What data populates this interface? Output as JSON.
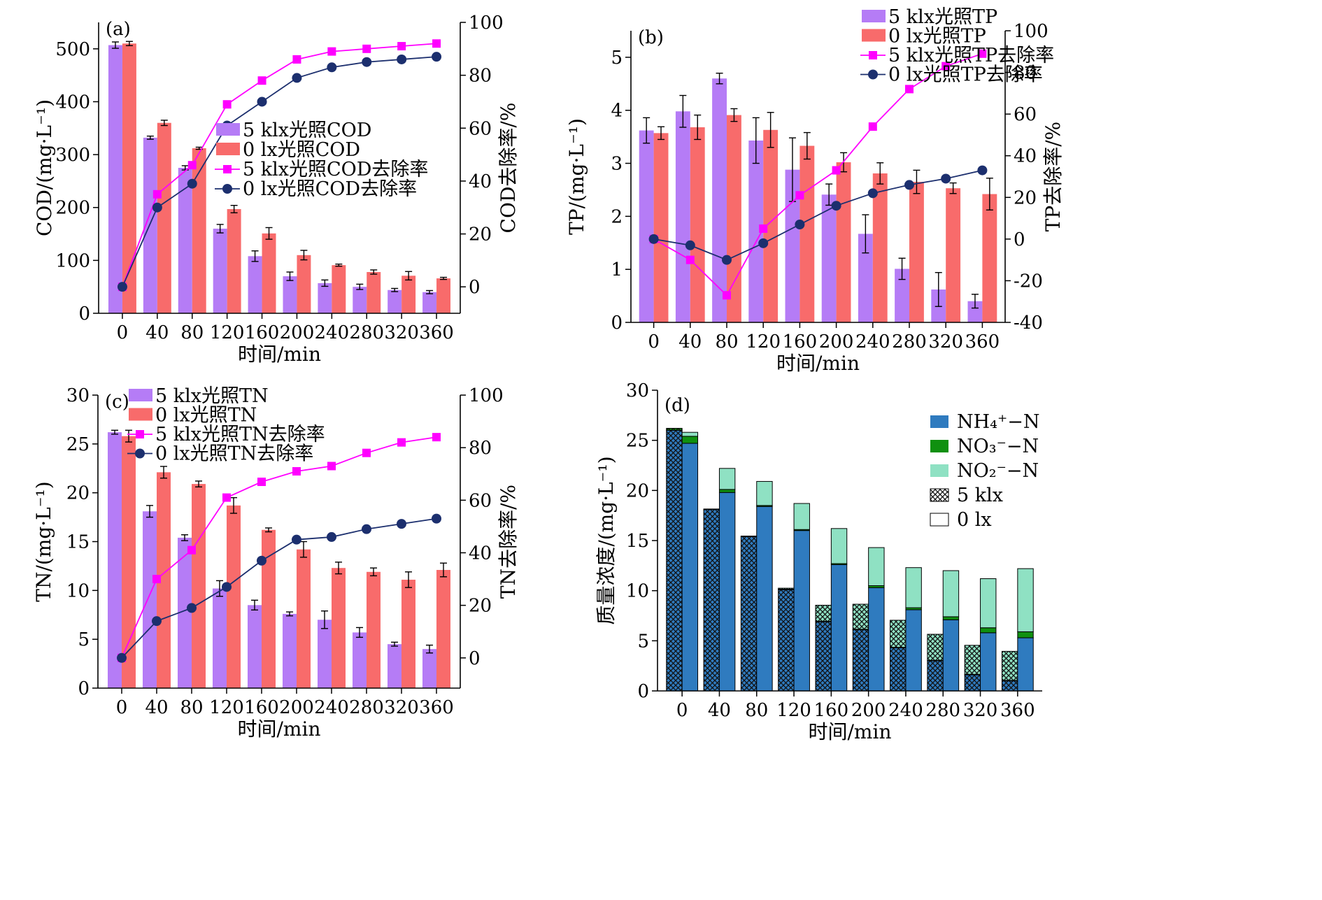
{
  "colors": {
    "purple": "#b57cf6",
    "red": "#f86b6b",
    "magenta": "#ff00ff",
    "navy": "#1c2f6e",
    "nh4": "#2f7bbf",
    "no3": "#109010",
    "no2": "#8fe1c3"
  },
  "chart_data": [
    {
      "type": "bar",
      "panel": "(a)",
      "xlabel": "时间/min",
      "ylabel": "COD/(mg·L⁻¹)",
      "y2label": "COD去除率/%",
      "x": [
        "0",
        "40",
        "80",
        "120",
        "160",
        "200",
        "240",
        "280",
        "320",
        "360"
      ],
      "ylim": [
        0,
        550
      ],
      "yticks": [
        0,
        100,
        200,
        300,
        400,
        500
      ],
      "y2lim": [
        -10,
        100
      ],
      "y2ticks": [
        0,
        20,
        40,
        60,
        80,
        100
      ],
      "series": [
        {
          "name": "5 klx光照COD",
          "kind": "bar",
          "color": "#b57cf6",
          "values": [
            507,
            332,
            275,
            160,
            108,
            70,
            57,
            50,
            44,
            40
          ],
          "errors": [
            6,
            3,
            4,
            8,
            10,
            8,
            6,
            5,
            3,
            3
          ]
        },
        {
          "name": "0 lx光照COD",
          "kind": "bar",
          "color": "#f86b6b",
          "values": [
            510,
            360,
            312,
            197,
            151,
            110,
            91,
            78,
            71,
            66
          ],
          "errors": [
            4,
            5,
            2,
            7,
            11,
            9,
            2,
            4,
            8,
            2
          ]
        },
        {
          "name": "5 klx光照COD去除率",
          "kind": "line",
          "axis": "right",
          "color": "#ff00ff",
          "marker": "square",
          "values": [
            0,
            35,
            46,
            69,
            78,
            86,
            89,
            90,
            91,
            92
          ]
        },
        {
          "name": "0 lx光照COD去除率",
          "kind": "line",
          "axis": "right",
          "color": "#1c2f6e",
          "marker": "circle",
          "values": [
            0,
            30,
            39,
            61,
            70,
            79,
            83,
            85,
            86,
            87
          ]
        }
      ]
    },
    {
      "type": "bar",
      "panel": "(b)",
      "xlabel": "时间/min",
      "ylabel": "TP/(mg·L⁻¹)",
      "y2label": "TP去除率/%",
      "x": [
        "0",
        "40",
        "80",
        "120",
        "160",
        "200",
        "240",
        "280",
        "320",
        "360"
      ],
      "ylim": [
        0,
        5.5
      ],
      "yticks": [
        0,
        1,
        2,
        3,
        4,
        5
      ],
      "y2lim": [
        -40,
        100
      ],
      "y2ticks": [
        -40,
        -20,
        0,
        20,
        40,
        60,
        80,
        100
      ],
      "series": [
        {
          "name": "5 klx光照TP",
          "kind": "bar",
          "color": "#b57cf6",
          "values": [
            3.62,
            3.98,
            4.6,
            3.43,
            2.88,
            2.41,
            1.67,
            1.01,
            0.62,
            0.4
          ],
          "errors": [
            0.24,
            0.3,
            0.1,
            0.43,
            0.6,
            0.2,
            0.36,
            0.2,
            0.32,
            0.13
          ]
        },
        {
          "name": "0 lx光照TP",
          "kind": "bar",
          "color": "#f86b6b",
          "values": [
            3.57,
            3.68,
            3.91,
            3.63,
            3.33,
            3.02,
            2.81,
            2.65,
            2.53,
            2.42
          ],
          "errors": [
            0.12,
            0.23,
            0.12,
            0.33,
            0.25,
            0.18,
            0.2,
            0.22,
            0.1,
            0.3
          ]
        },
        {
          "name": "5 klx光照TP去除率",
          "kind": "line",
          "axis": "right",
          "color": "#ff00ff",
          "marker": "square",
          "values": [
            0,
            -10,
            -27,
            5,
            21,
            33,
            54,
            72,
            83,
            89
          ]
        },
        {
          "name": "0 lx光照TP去除率",
          "kind": "line",
          "axis": "right",
          "color": "#1c2f6e",
          "marker": "circle",
          "values": [
            0,
            -3,
            -10,
            -2,
            7,
            16,
            22,
            26,
            29,
            33
          ]
        }
      ]
    },
    {
      "type": "bar",
      "panel": "(c)",
      "xlabel": "时间/min",
      "ylabel": "TN/(mg·L⁻¹)",
      "y2label": "TN去除率/%",
      "x": [
        "0",
        "40",
        "80",
        "120",
        "160",
        "200",
        "240",
        "280",
        "320",
        "360"
      ],
      "ylim": [
        0,
        30
      ],
      "yticks": [
        0,
        5,
        10,
        15,
        20,
        25,
        30
      ],
      "y2lim": [
        -11.5,
        100
      ],
      "y2ticks": [
        0,
        20,
        40,
        60,
        80,
        100
      ],
      "series": [
        {
          "name": "5 klx光照TN",
          "kind": "bar",
          "color": "#b57cf6",
          "values": [
            26.2,
            18.1,
            15.4,
            10.2,
            8.5,
            7.6,
            7.0,
            5.7,
            4.5,
            4.0
          ],
          "errors": [
            0.2,
            0.6,
            0.3,
            0.8,
            0.5,
            0.2,
            0.9,
            0.5,
            0.2,
            0.4
          ]
        },
        {
          "name": "0 lx光照TN",
          "kind": "bar",
          "color": "#f86b6b",
          "values": [
            25.8,
            22.1,
            20.9,
            18.7,
            16.2,
            14.2,
            12.3,
            11.9,
            11.1,
            12.1
          ],
          "errors": [
            0.6,
            0.6,
            0.3,
            0.8,
            0.2,
            0.8,
            0.6,
            0.4,
            0.8,
            0.7
          ]
        },
        {
          "name": "5 klx光照TN去除率",
          "kind": "line",
          "axis": "right",
          "color": "#ff00ff",
          "marker": "square",
          "values": [
            0,
            30,
            41,
            61,
            67,
            71,
            73,
            78,
            82,
            84
          ]
        },
        {
          "name": "0 lx光照TN去除率",
          "kind": "line",
          "axis": "right",
          "color": "#1c2f6e",
          "marker": "circle",
          "values": [
            0,
            14,
            19,
            27,
            37,
            45,
            46,
            49,
            51,
            53
          ]
        }
      ]
    },
    {
      "type": "bar",
      "stacked": true,
      "panel": "(d)",
      "xlabel": "时间/min",
      "ylabel": "质量浓度/(mg·L⁻¹)",
      "x": [
        "0",
        "40",
        "80",
        "120",
        "160",
        "200",
        "240",
        "280",
        "320",
        "360"
      ],
      "ylim": [
        0,
        30
      ],
      "yticks": [
        0,
        5,
        10,
        15,
        20,
        25,
        30
      ],
      "legend": [
        {
          "label": "NH₄⁺−N",
          "color": "#2f7bbf",
          "pattern": "solid"
        },
        {
          "label": "NO₃⁻−N",
          "color": "#109010",
          "pattern": "solid"
        },
        {
          "label": "NO₂⁻−N",
          "color": "#8fe1c3",
          "pattern": "solid"
        },
        {
          "label": "5 klx",
          "color": "#ffffff",
          "pattern": "crosshatch"
        },
        {
          "label": "0 lx",
          "color": "#ffffff",
          "pattern": "solid"
        }
      ],
      "series": [
        {
          "name": "5 klx NH₄⁺−N",
          "group": "5 klx",
          "color": "#2f7bbf",
          "values": [
            26.0,
            18.1,
            15.4,
            10.1,
            6.9,
            6.1,
            4.3,
            3.0,
            1.6,
            1.0
          ]
        },
        {
          "name": "5 klx NO₃⁻−N",
          "group": "5 klx",
          "color": "#109010",
          "values": [
            0.2,
            0.05,
            0.05,
            0.05,
            0.05,
            0.05,
            0.05,
            0.05,
            0.05,
            0.05
          ]
        },
        {
          "name": "5 klx NO₂⁻−N",
          "group": "5 klx",
          "color": "#8fe1c3",
          "values": [
            0,
            0,
            0,
            0.1,
            1.6,
            2.5,
            2.7,
            2.6,
            2.9,
            2.9
          ]
        },
        {
          "name": "0 lx NH₄⁺−N",
          "group": "0 lx",
          "color": "#2f7bbf",
          "values": [
            24.7,
            19.8,
            18.4,
            16.0,
            12.6,
            10.3,
            8.1,
            7.1,
            5.8,
            5.3
          ]
        },
        {
          "name": "0 lx NO₃⁻−N",
          "group": "0 lx",
          "color": "#109010",
          "values": [
            0.7,
            0.3,
            0.1,
            0.1,
            0.1,
            0.2,
            0.2,
            0.3,
            0.5,
            0.6
          ]
        },
        {
          "name": "0 lx NO₂⁻−N",
          "group": "0 lx",
          "color": "#8fe1c3",
          "values": [
            0.4,
            2.1,
            2.4,
            2.6,
            3.5,
            3.8,
            4.0,
            4.6,
            4.9,
            6.3
          ]
        }
      ]
    }
  ]
}
